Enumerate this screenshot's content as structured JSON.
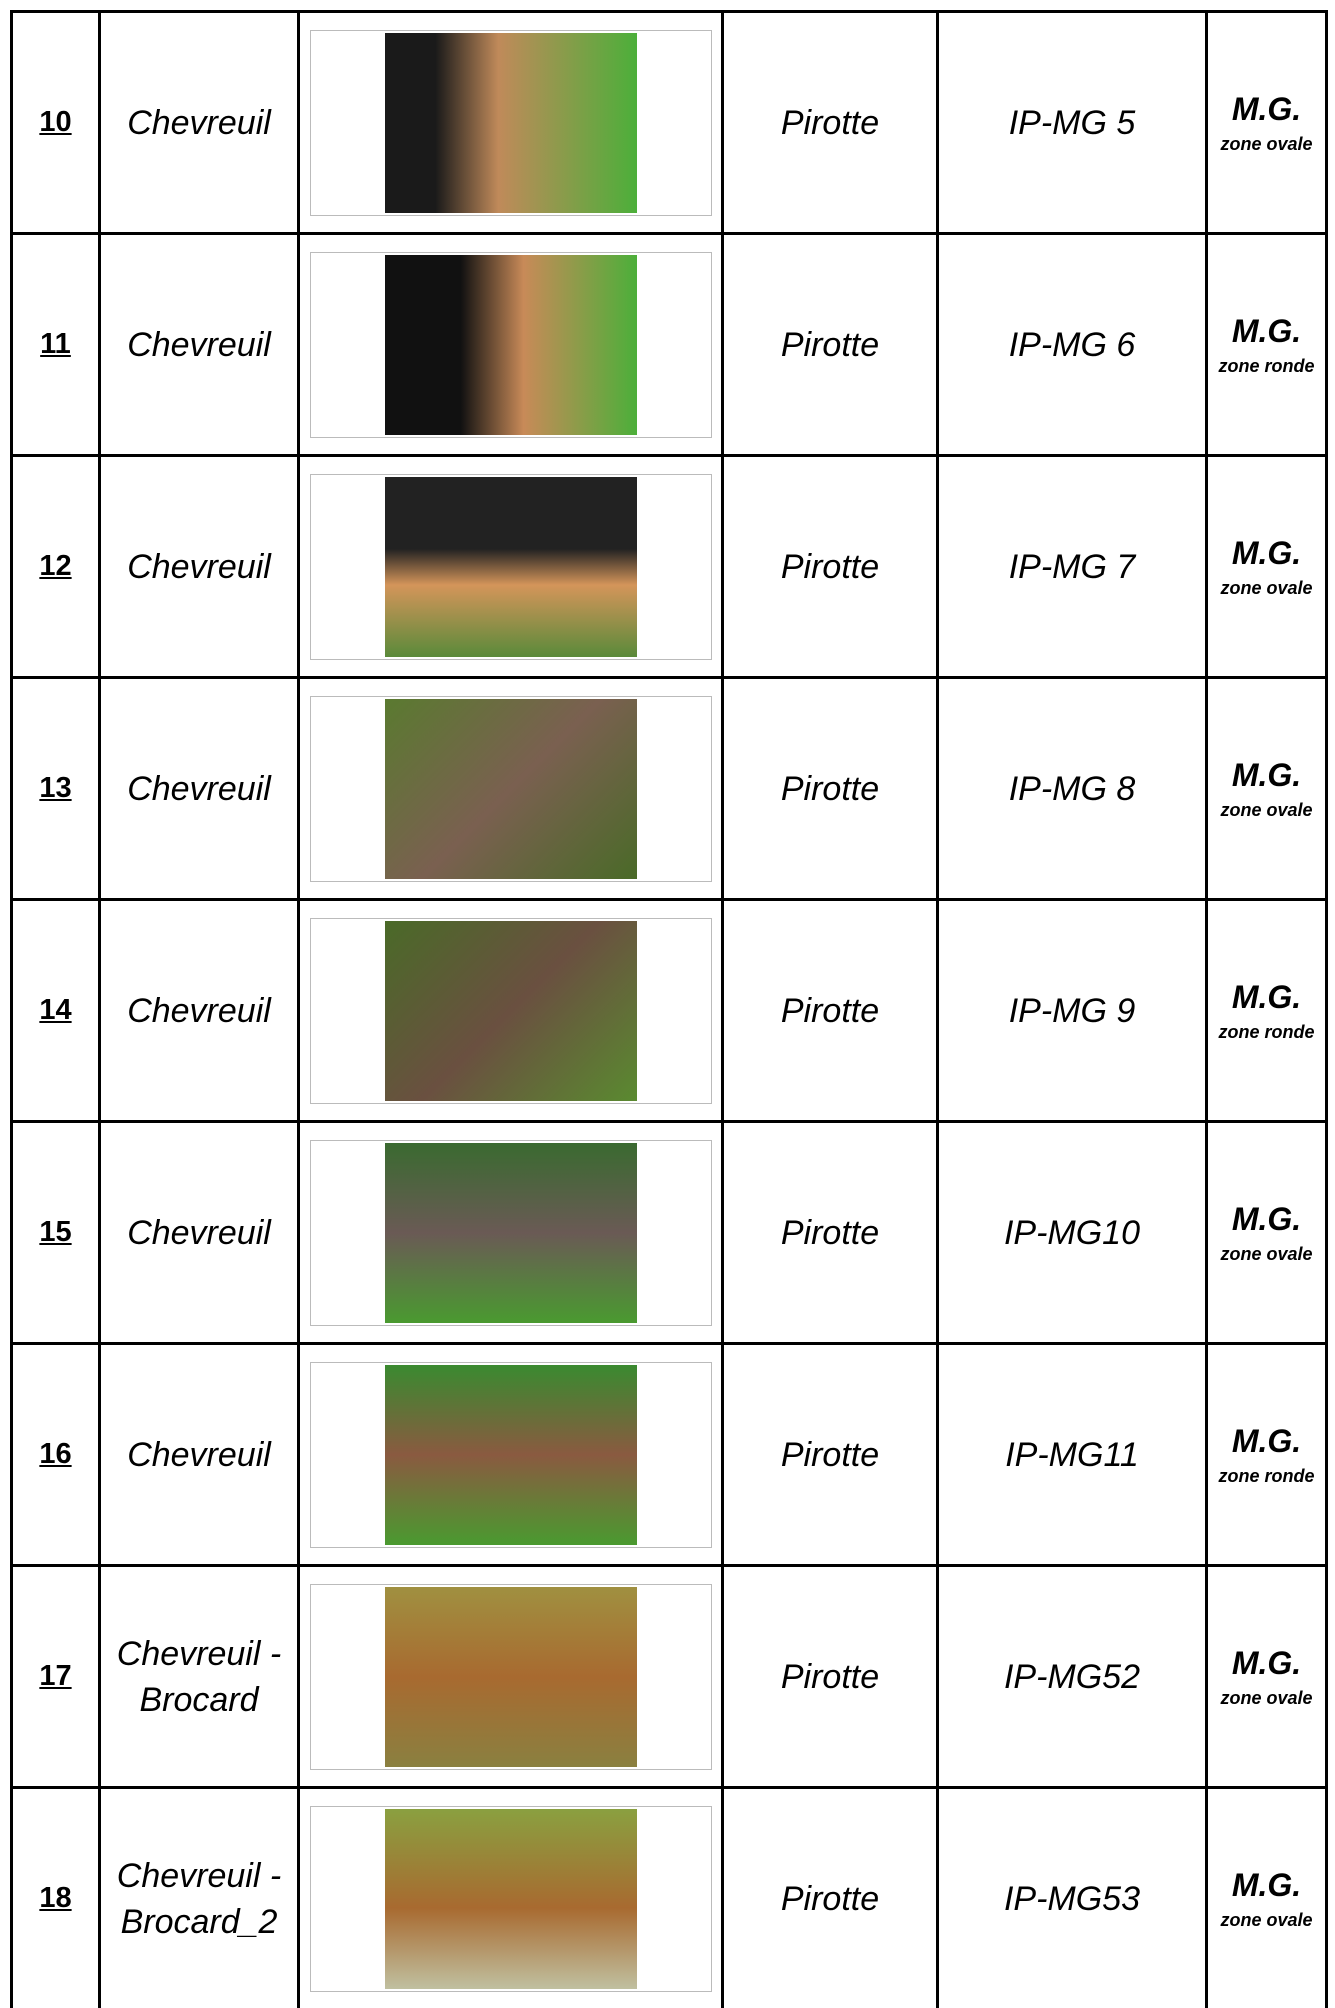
{
  "table": {
    "rows": [
      {
        "number": "10",
        "species": "Chevreuil",
        "brand": "Pirotte",
        "code": "IP-MG 5",
        "category": "M.G.",
        "zone": "zone ovale"
      },
      {
        "number": "11",
        "species": "Chevreuil",
        "brand": "Pirotte",
        "code": "IP-MG 6",
        "category": "M.G.",
        "zone": "zone ronde"
      },
      {
        "number": "12",
        "species": "Chevreuil",
        "brand": "Pirotte",
        "code": "IP-MG 7",
        "category": "M.G.",
        "zone": "zone ovale"
      },
      {
        "number": "13",
        "species": "Chevreuil",
        "brand": "Pirotte",
        "code": "IP-MG 8",
        "category": "M.G.",
        "zone": "zone ovale"
      },
      {
        "number": "14",
        "species": "Chevreuil",
        "brand": "Pirotte",
        "code": "IP-MG 9",
        "category": "M.G.",
        "zone": "zone ronde"
      },
      {
        "number": "15",
        "species": "Chevreuil",
        "brand": "Pirotte",
        "code": "IP-MG10",
        "category": "M.G.",
        "zone": "zone ovale"
      },
      {
        "number": "16",
        "species": "Chevreuil",
        "brand": "Pirotte",
        "code": "IP-MG11",
        "category": "M.G.",
        "zone": "zone ronde"
      },
      {
        "number": "17",
        "species": "Chevreuil - Brocard",
        "brand": "Pirotte",
        "code": "IP-MG52",
        "category": "M.G.",
        "zone": "zone ovale"
      },
      {
        "number": "18",
        "species": "Chevreuil - Brocard_2",
        "brand": "Pirotte",
        "code": "IP-MG53",
        "category": "M.G.",
        "zone": "zone ovale"
      }
    ]
  }
}
